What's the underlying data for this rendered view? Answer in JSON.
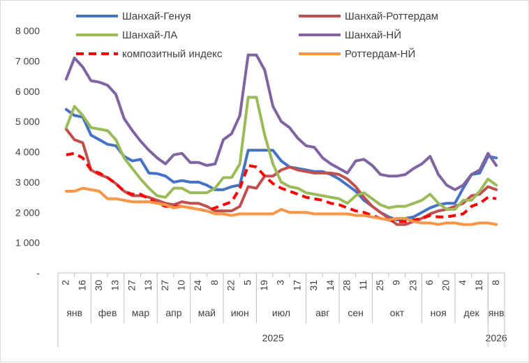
{
  "chart_data": {
    "type": "line",
    "title": "",
    "xlabel": "",
    "ylabel": "",
    "ylim": [
      0,
      8000
    ],
    "y_ticks": [
      {
        "value": 0,
        "label": "-"
      },
      {
        "value": 1000,
        "label": "1 000"
      },
      {
        "value": 2000,
        "label": "2 000"
      },
      {
        "value": 3000,
        "label": "3 000"
      },
      {
        "value": 4000,
        "label": "4 000"
      },
      {
        "value": 5000,
        "label": "5 000"
      },
      {
        "value": 6000,
        "label": "6 000"
      },
      {
        "value": 7000,
        "label": "7 000"
      },
      {
        "value": 8000,
        "label": "8 000"
      }
    ],
    "x_day_ticks": [
      "2",
      "16",
      "30",
      "13",
      "27",
      "13",
      "27",
      "10",
      "24",
      "8",
      "22",
      "5",
      "19",
      "3",
      "17",
      "31",
      "14",
      "28",
      "11",
      "25",
      "9",
      "23",
      "6",
      "20",
      "4",
      "18",
      "8"
    ],
    "x_month_labels": [
      {
        "label": "янв",
        "from": 0,
        "to": 1
      },
      {
        "label": "фев",
        "from": 2,
        "to": 3
      },
      {
        "label": "мар",
        "from": 4,
        "to": 5
      },
      {
        "label": "апр",
        "from": 6,
        "to": 7
      },
      {
        "label": "май",
        "from": 8,
        "to": 9
      },
      {
        "label": "июн",
        "from": 10,
        "to": 11
      },
      {
        "label": "июл",
        "from": 12,
        "to": 14
      },
      {
        "label": "авг",
        "from": 15,
        "to": 16
      },
      {
        "label": "сен",
        "from": 17,
        "to": 18
      },
      {
        "label": "окт",
        "from": 19,
        "to": 21
      },
      {
        "label": "ноя",
        "from": 22,
        "to": 23
      },
      {
        "label": "дек",
        "from": 24,
        "to": 25
      },
      {
        "label": "янв",
        "from": 26,
        "to": 26
      }
    ],
    "x_year_labels": [
      {
        "label": "2025",
        "from": 0,
        "to": 25
      },
      {
        "label": "2026",
        "from": 26,
        "to": 26
      }
    ],
    "legend_position": "top",
    "series": [
      {
        "name": "Шанхай-Генуя",
        "color": "#4472c4",
        "dash": false,
        "values": [
          5400,
          5200,
          5150,
          4550,
          4400,
          4250,
          4200,
          3850,
          3700,
          3750,
          3300,
          3280,
          3200,
          3000,
          3050,
          3000,
          3000,
          2900,
          2750,
          2750,
          2850,
          2900,
          4050,
          4050,
          4050,
          4050,
          3700,
          3500,
          3450,
          3400,
          3350,
          3350,
          3250,
          3100,
          2900,
          2700,
          2400,
          2200,
          2000,
          1850,
          1750,
          1800,
          1850,
          2000,
          2150,
          2250,
          2300,
          2300,
          2800,
          3250,
          3300,
          3850,
          3800
        ]
      },
      {
        "name": "Шанхай-Роттердам",
        "color": "#c0504d",
        "dash": false,
        "values": [
          4750,
          4400,
          4300,
          3400,
          3250,
          3150,
          2950,
          2700,
          2550,
          2550,
          2500,
          2400,
          2300,
          2250,
          2350,
          2300,
          2300,
          2200,
          2050,
          2050,
          2050,
          2200,
          2850,
          2800,
          3200,
          3200,
          3400,
          3500,
          3400,
          3350,
          3300,
          3300,
          3300,
          3250,
          3100,
          2850,
          2500,
          2200,
          2000,
          1800,
          1600,
          1600,
          1700,
          1800,
          1950,
          2050,
          2100,
          2200,
          2300,
          2550,
          2600,
          2850,
          2750
        ]
      },
      {
        "name": "Шанхай-ЛА",
        "color": "#9bbb59",
        "dash": false,
        "values": [
          4800,
          5500,
          5200,
          4800,
          4750,
          4700,
          4400,
          3800,
          3450,
          3100,
          2800,
          2550,
          2500,
          2800,
          2800,
          2650,
          2650,
          2650,
          2800,
          3150,
          3150,
          3600,
          5800,
          5800,
          4550,
          3600,
          3000,
          2850,
          2800,
          2650,
          2600,
          2550,
          2500,
          2450,
          2300,
          2550,
          2650,
          2450,
          2250,
          2150,
          2200,
          2200,
          2300,
          2400,
          2600,
          2300,
          2100,
          2100,
          2400,
          2400,
          2700,
          3100,
          2900
        ]
      },
      {
        "name": "Шанхай-НЙ",
        "color": "#8064a2",
        "dash": false,
        "values": [
          6400,
          7100,
          6800,
          6350,
          6300,
          6200,
          5900,
          5100,
          4700,
          4350,
          4050,
          3800,
          3600,
          3900,
          3950,
          3650,
          3650,
          3550,
          3600,
          4400,
          4600,
          5200,
          7200,
          7200,
          6700,
          5500,
          5000,
          4800,
          4450,
          4200,
          4150,
          3800,
          3600,
          3450,
          3300,
          3700,
          3750,
          3550,
          3250,
          3200,
          3200,
          3250,
          3450,
          3600,
          3850,
          3250,
          2900,
          2750,
          2900,
          3250,
          3400,
          3950,
          3550
        ]
      },
      {
        "name": "композитный индекс",
        "color": "#ff0000",
        "dash": true,
        "values": [
          3900,
          3950,
          3800,
          3400,
          3300,
          3150,
          2950,
          2700,
          2600,
          2600,
          2450,
          2300,
          2200,
          2200,
          2200,
          2150,
          2100,
          2050,
          2150,
          2250,
          2350,
          2800,
          3550,
          3500,
          3200,
          2950,
          2800,
          2700,
          2600,
          2500,
          2450,
          2400,
          2300,
          2250,
          2150,
          2050,
          2000,
          1900,
          1800,
          1750,
          1700,
          1700,
          1750,
          1800,
          1900,
          1850,
          1850,
          1900,
          1950,
          2200,
          2300,
          2500,
          2450
        ]
      },
      {
        "name": "Роттердам-НЙ",
        "color": "#f79646",
        "dash": false,
        "values": [
          2700,
          2700,
          2800,
          2750,
          2700,
          2450,
          2450,
          2400,
          2350,
          2350,
          2350,
          2300,
          2250,
          2150,
          2200,
          2150,
          2100,
          2050,
          1950,
          1950,
          1900,
          1950,
          1950,
          1950,
          1950,
          1950,
          2100,
          2000,
          2000,
          2000,
          1950,
          1950,
          1950,
          1950,
          1950,
          1900,
          1900,
          1850,
          1800,
          1750,
          1800,
          1800,
          1700,
          1650,
          1650,
          1600,
          1650,
          1650,
          1600,
          1600,
          1650,
          1650,
          1600
        ]
      }
    ]
  }
}
